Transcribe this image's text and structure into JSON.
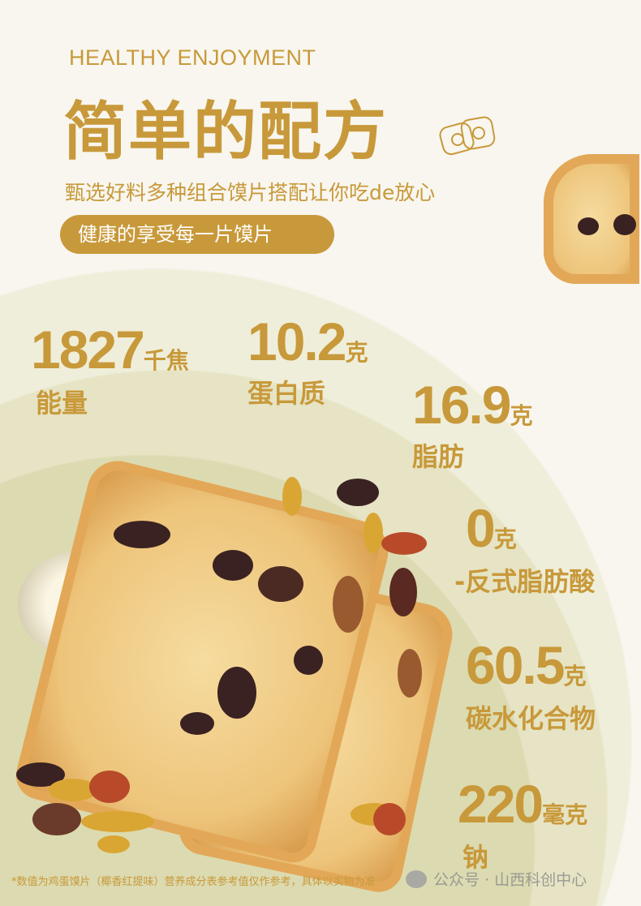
{
  "header": {
    "eyebrow": "HEALTHY ENJOYMENT",
    "title": "简单的配方",
    "subtitle": "甄选好料多种组合馍片搭配让你吃de放心",
    "pill": "健康的享受每一片馍片"
  },
  "nutrition": [
    {
      "value": "1827",
      "unit": "千焦",
      "label": "能量"
    },
    {
      "value": "10.2",
      "unit": "克",
      "label": "蛋白质"
    },
    {
      "value": "16.9",
      "unit": "克",
      "label": "脂肪"
    },
    {
      "value": "0",
      "unit": "克",
      "label": "-反式脂肪酸"
    },
    {
      "value": "60.5",
      "unit": "克",
      "label": "碳水化合物"
    },
    {
      "value": "220",
      "unit": "毫克",
      "label": "钠"
    }
  ],
  "footnote": "*数值为鸡蛋馍片（椰香红提味）营养成分表参考值仅作参考，具体以实物为准",
  "watermark": "公众号 · 山西科创中心",
  "colors": {
    "accent": "#c8993a",
    "background": "#f8f6ef",
    "ring1": "#efeeda",
    "ring2": "#e6e4c4",
    "ring3": "#dcdab0"
  }
}
